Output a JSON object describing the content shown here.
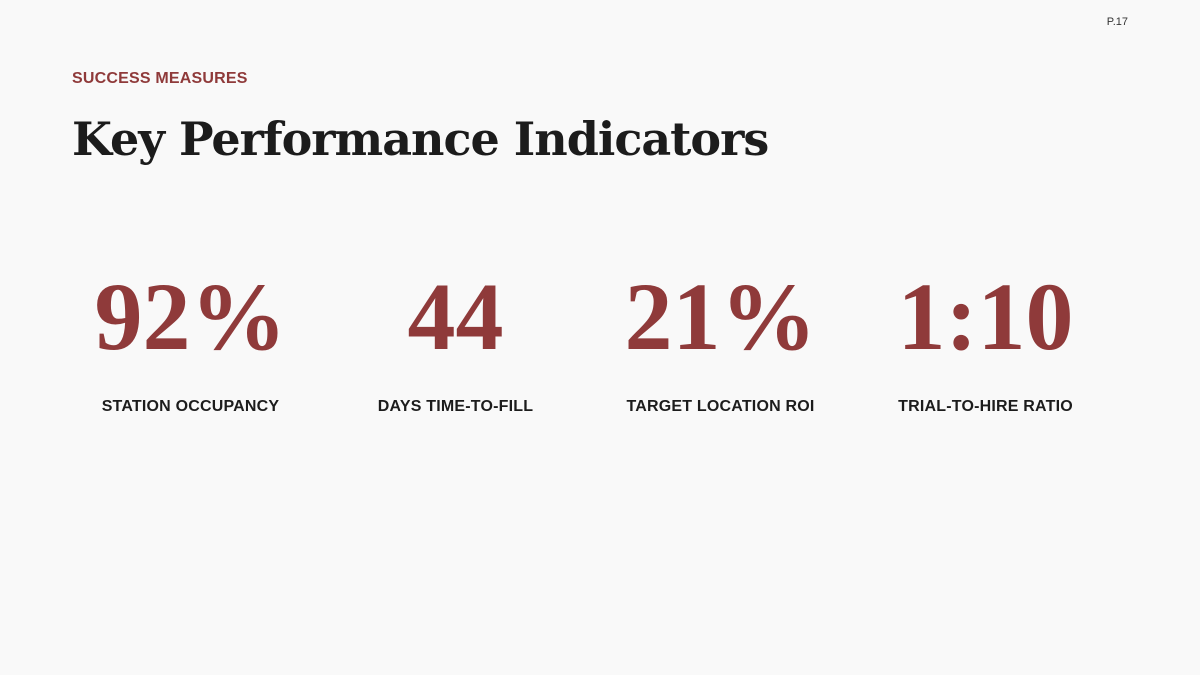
{
  "page_number": "P.17",
  "eyebrow": "SUCCESS MEASURES",
  "title": "Key Performance Indicators",
  "kpis": [
    {
      "value": "92%",
      "label": "STATION OCCUPANCY"
    },
    {
      "value": "44",
      "label": "DAYS TIME-TO-FILL"
    },
    {
      "value": "21%",
      "label": "TARGET LOCATION ROI"
    },
    {
      "value": "1:10",
      "label": "TRIAL-TO-HIRE RATIO"
    }
  ]
}
